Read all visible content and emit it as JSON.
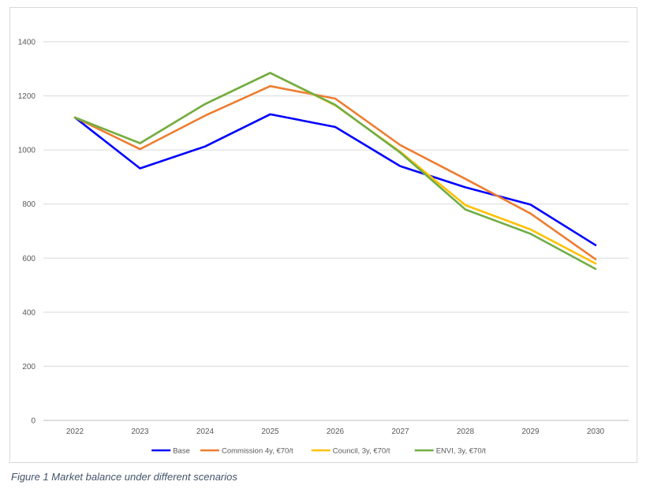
{
  "chart_data": {
    "type": "line",
    "x": [
      "2022",
      "2023",
      "2024",
      "2025",
      "2026",
      "2027",
      "2028",
      "2029",
      "2030"
    ],
    "ylim": [
      0,
      1400
    ],
    "yticks": [
      0,
      200,
      400,
      600,
      800,
      1000,
      1200,
      1400
    ],
    "grid": true,
    "legend_position": "bottom",
    "series": [
      {
        "name": "Base",
        "color": "#0000ff",
        "values": [
          1120,
          932,
          1013,
          1132,
          1085,
          940,
          862,
          798,
          648
        ]
      },
      {
        "name": "Commission 4y, €70/t",
        "color": "#ed7d31",
        "values": [
          1120,
          1003,
          1127,
          1236,
          1190,
          1018,
          893,
          765,
          596
        ]
      },
      {
        "name": "Council, 3y, €70/t",
        "color": "#ffc000",
        "values": [
          1120,
          1025,
          1170,
          1285,
          1165,
          993,
          796,
          706,
          580
        ]
      },
      {
        "name": "ENVI, 3y, €70/t",
        "color": "#70ad47",
        "values": [
          1120,
          1025,
          1170,
          1285,
          1167,
          990,
          780,
          690,
          560
        ]
      }
    ]
  },
  "caption": "Figure 1 Market balance under different scenarios"
}
